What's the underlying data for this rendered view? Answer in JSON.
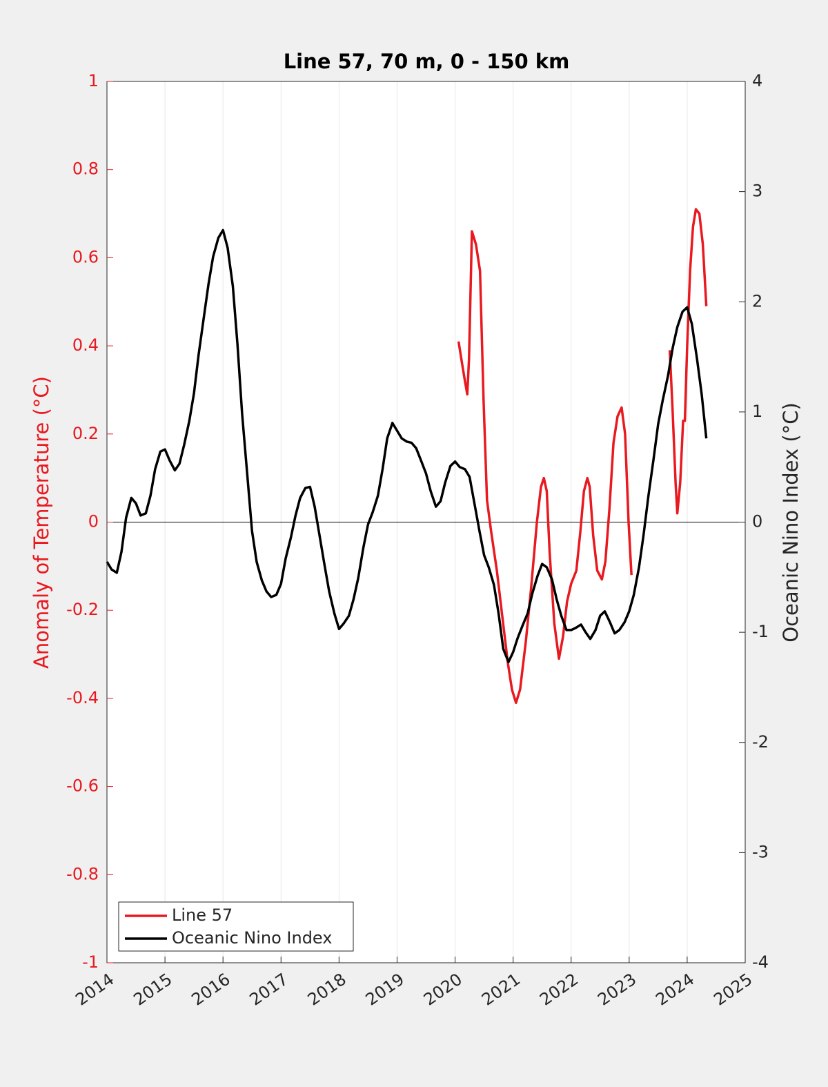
{
  "chart_data": {
    "type": "line",
    "title": "Line 57, 70 m, 0 - 150 km",
    "ylabel": "Anomaly of Temperature (°C)",
    "y2label": "Oceanic Nino Index (°C)",
    "xlim": [
      2014,
      2025
    ],
    "xticks": [
      2014,
      2015,
      2016,
      2017,
      2018,
      2019,
      2020,
      2021,
      2022,
      2023,
      2024,
      2025
    ],
    "ylim": [
      -1,
      1
    ],
    "yticks": [
      -1,
      -0.8,
      -0.6,
      -0.4,
      -0.2,
      0,
      0.2,
      0.4,
      0.6,
      0.8,
      1
    ],
    "y2lim": [
      -4,
      4
    ],
    "y2ticks": [
      -4,
      -3,
      -2,
      -1,
      0,
      1,
      2,
      3,
      4
    ],
    "grid": "x",
    "zero_line": true,
    "y_axis_color": "#e8191f",
    "legend": "lower-left",
    "series": [
      {
        "name": "Line 57",
        "color": "#e8191f",
        "axis": "y",
        "x": [
          2020.06,
          2020.12,
          2020.17,
          2020.21,
          2020.24,
          2020.29,
          2020.36,
          2020.43,
          2020.49,
          2020.55,
          2020.62,
          2020.72,
          2020.81,
          2020.91,
          2020.98,
          2021.05,
          2021.12,
          2021.22,
          2021.31,
          2021.41,
          2021.48,
          2021.53,
          2021.58,
          2021.63,
          2021.71,
          2021.79,
          2021.86,
          2021.93,
          2022.0,
          2022.09,
          2022.16,
          2022.22,
          2022.28,
          2022.32,
          2022.38,
          2022.45,
          2022.53,
          2022.59,
          2022.66,
          2022.73,
          2022.8,
          2022.87,
          2022.93,
          2022.99,
          2023.04,
          2023.4,
          2023.7,
          2023.75,
          2023.8,
          2023.83,
          2023.88,
          2023.93,
          2023.96,
          2024.0,
          2024.05,
          2024.1,
          2024.15,
          2024.21,
          2024.27,
          2024.33
        ],
        "values": [
          0.41,
          0.36,
          0.32,
          0.29,
          0.37,
          0.66,
          0.63,
          0.57,
          0.28,
          0.05,
          -0.02,
          -0.11,
          -0.21,
          -0.32,
          -0.38,
          -0.41,
          -0.38,
          -0.27,
          -0.15,
          0.0,
          0.08,
          0.1,
          0.07,
          -0.07,
          -0.23,
          -0.31,
          -0.26,
          -0.18,
          -0.14,
          -0.11,
          -0.02,
          0.07,
          0.1,
          0.08,
          -0.03,
          -0.11,
          -0.13,
          -0.09,
          0.03,
          0.18,
          0.24,
          0.26,
          0.2,
          0.0,
          -0.12,
          null,
          0.39,
          0.25,
          0.09,
          0.02,
          0.09,
          0.23,
          0.23,
          0.4,
          0.57,
          0.67,
          0.71,
          0.7,
          0.63,
          0.49
        ]
      },
      {
        "name": "Oceanic Nino Index",
        "color": "#000000",
        "axis": "y2",
        "x": [
          2014,
          2014.08,
          2014.17,
          2014.25,
          2014.33,
          2014.42,
          2014.5,
          2014.58,
          2014.67,
          2014.75,
          2014.83,
          2014.92,
          2015,
          2015.08,
          2015.17,
          2015.25,
          2015.33,
          2015.42,
          2015.5,
          2015.58,
          2015.67,
          2015.75,
          2015.83,
          2015.92,
          2016,
          2016.08,
          2016.17,
          2016.25,
          2016.33,
          2016.42,
          2016.5,
          2016.58,
          2016.67,
          2016.75,
          2016.83,
          2016.92,
          2017,
          2017.08,
          2017.17,
          2017.25,
          2017.33,
          2017.42,
          2017.5,
          2017.58,
          2017.67,
          2017.75,
          2017.83,
          2017.92,
          2018,
          2018.08,
          2018.17,
          2018.25,
          2018.33,
          2018.42,
          2018.5,
          2018.58,
          2018.67,
          2018.75,
          2018.83,
          2018.92,
          2019,
          2019.08,
          2019.17,
          2019.25,
          2019.33,
          2019.42,
          2019.5,
          2019.58,
          2019.67,
          2019.75,
          2019.83,
          2019.92,
          2020,
          2020.08,
          2020.17,
          2020.25,
          2020.33,
          2020.42,
          2020.5,
          2020.58,
          2020.67,
          2020.75,
          2020.83,
          2020.92,
          2021,
          2021.08,
          2021.17,
          2021.25,
          2021.33,
          2021.42,
          2021.5,
          2021.58,
          2021.67,
          2021.75,
          2021.83,
          2021.92,
          2022,
          2022.08,
          2022.17,
          2022.25,
          2022.33,
          2022.42,
          2022.5,
          2022.58,
          2022.67,
          2022.75,
          2022.83,
          2022.92,
          2023,
          2023.08,
          2023.17,
          2023.25,
          2023.33,
          2023.42,
          2023.5,
          2023.58,
          2023.67,
          2023.75,
          2023.83,
          2023.92,
          2024,
          2024.08,
          2024.17,
          2024.25,
          2024.33
        ],
        "values": [
          -0.36,
          -0.43,
          -0.46,
          -0.27,
          0.04,
          0.22,
          0.17,
          0.06,
          0.08,
          0.24,
          0.48,
          0.64,
          0.66,
          0.56,
          0.47,
          0.53,
          0.7,
          0.92,
          1.17,
          1.52,
          1.86,
          2.16,
          2.41,
          2.58,
          2.65,
          2.49,
          2.14,
          1.61,
          0.98,
          0.42,
          -0.08,
          -0.36,
          -0.53,
          -0.63,
          -0.68,
          -0.66,
          -0.56,
          -0.33,
          -0.14,
          0.06,
          0.22,
          0.31,
          0.32,
          0.14,
          -0.14,
          -0.39,
          -0.63,
          -0.83,
          -0.97,
          -0.92,
          -0.85,
          -0.7,
          -0.51,
          -0.23,
          -0.02,
          0.09,
          0.24,
          0.48,
          0.76,
          0.9,
          0.83,
          0.76,
          0.73,
          0.72,
          0.67,
          0.55,
          0.44,
          0.28,
          0.14,
          0.19,
          0.36,
          0.51,
          0.55,
          0.5,
          0.48,
          0.41,
          0.18,
          -0.08,
          -0.3,
          -0.41,
          -0.57,
          -0.83,
          -1.15,
          -1.27,
          -1.18,
          -1.05,
          -0.93,
          -0.83,
          -0.65,
          -0.49,
          -0.38,
          -0.41,
          -0.52,
          -0.7,
          -0.85,
          -0.98,
          -0.98,
          -0.96,
          -0.93,
          -1.0,
          -1.06,
          -0.98,
          -0.85,
          -0.81,
          -0.91,
          -1.01,
          -0.98,
          -0.91,
          -0.81,
          -0.66,
          -0.41,
          -0.11,
          0.23,
          0.57,
          0.89,
          1.11,
          1.33,
          1.58,
          1.77,
          1.91,
          1.95,
          1.8,
          1.48,
          1.16,
          0.76
        ]
      }
    ]
  }
}
